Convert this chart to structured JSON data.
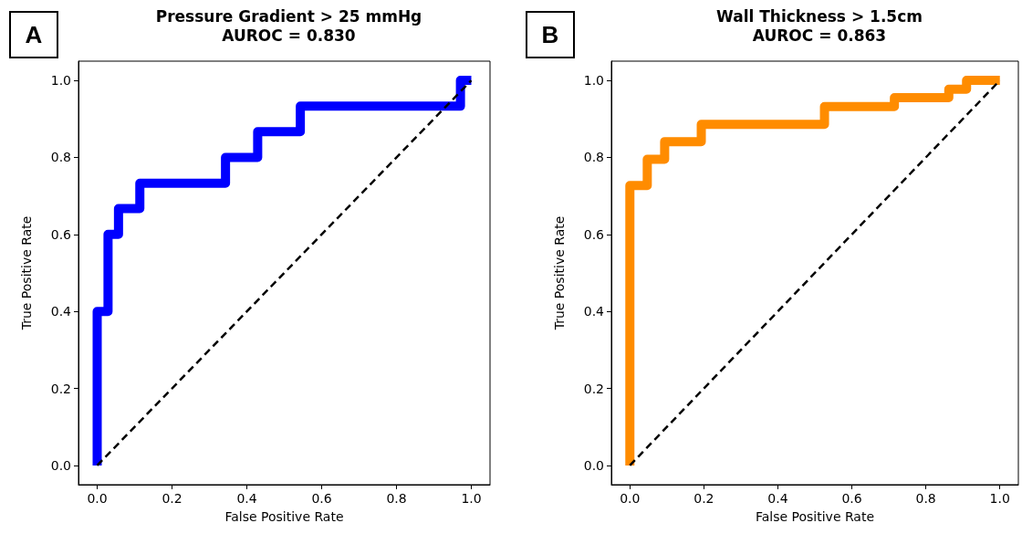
{
  "chart_data": [
    {
      "type": "line",
      "title": "Pressure Gradient > 25 mmHg",
      "subtitle": "AUROC = 0.830",
      "xlabel": "False Positive Rate",
      "ylabel": "True Positive Rate",
      "annotations": [
        "A"
      ],
      "xlim": [
        -0.05,
        1.05
      ],
      "ylim": [
        -0.05,
        1.05
      ],
      "xticks": [
        {
          "value": 0,
          "label": "0.0"
        },
        {
          "value": 0.2,
          "label": "0.2"
        },
        {
          "value": 0.4,
          "label": "0.4"
        },
        {
          "value": 0.6,
          "label": "0.6"
        },
        {
          "value": 0.8,
          "label": "0.8"
        },
        {
          "value": 1,
          "label": "1.0"
        }
      ],
      "yticks": [
        {
          "value": 0,
          "label": "0.0"
        },
        {
          "value": 0.2,
          "label": "0.2"
        },
        {
          "value": 0.4,
          "label": "0.4"
        },
        {
          "value": 0.6,
          "label": "0.6"
        },
        {
          "value": 0.8,
          "label": "0.8"
        },
        {
          "value": 1,
          "label": "1.0"
        }
      ],
      "grid": false,
      "marker": "none",
      "series": [
        {
          "color": "#0000ff",
          "line_style": "solid",
          "x": [
            0,
            0,
            0.029,
            0.029,
            0.057,
            0.057,
            0.114,
            0.114,
            0.343,
            0.343,
            0.429,
            0.429,
            0.543,
            0.543,
            0.971,
            0.971,
            1
          ],
          "values": [
            0,
            0.4,
            0.4,
            0.6,
            0.6,
            0.667,
            0.667,
            0.733,
            0.733,
            0.8,
            0.8,
            0.867,
            0.867,
            0.933,
            0.933,
            1,
            1
          ]
        },
        {
          "color": "#000000",
          "line_style": "dashed",
          "x": [
            0,
            1
          ],
          "values": [
            0,
            1
          ]
        }
      ]
    },
    {
      "type": "line",
      "title": "Wall Thickness > 1.5cm",
      "subtitle": "AUROC = 0.863",
      "xlabel": "False Positive Rate",
      "ylabel": "True Positive Rate",
      "annotations": [
        "B"
      ],
      "xlim": [
        -0.05,
        1.05
      ],
      "ylim": [
        -0.05,
        1.05
      ],
      "xticks": [
        {
          "value": 0,
          "label": "0.0"
        },
        {
          "value": 0.2,
          "label": "0.2"
        },
        {
          "value": 0.4,
          "label": "0.4"
        },
        {
          "value": 0.6,
          "label": "0.6"
        },
        {
          "value": 0.8,
          "label": "0.8"
        },
        {
          "value": 1,
          "label": "1.0"
        }
      ],
      "yticks": [
        {
          "value": 0,
          "label": "0.0"
        },
        {
          "value": 0.2,
          "label": "0.2"
        },
        {
          "value": 0.4,
          "label": "0.4"
        },
        {
          "value": 0.6,
          "label": "0.6"
        },
        {
          "value": 0.8,
          "label": "0.8"
        },
        {
          "value": 1,
          "label": "1.0"
        }
      ],
      "grid": false,
      "marker": "none",
      "series": [
        {
          "color": "#ff8c00",
          "line_style": "solid",
          "x": [
            0,
            0,
            0.047,
            0.047,
            0.094,
            0.094,
            0.193,
            0.193,
            0.526,
            0.526,
            0.715,
            0.715,
            0.862,
            0.862,
            0.91,
            0.91,
            1
          ],
          "values": [
            0,
            0.727,
            0.727,
            0.795,
            0.795,
            0.841,
            0.841,
            0.886,
            0.886,
            0.932,
            0.932,
            0.955,
            0.955,
            0.977,
            0.977,
            1,
            1
          ]
        },
        {
          "color": "#000000",
          "line_style": "dashed",
          "x": [
            0,
            1
          ],
          "values": [
            0,
            1
          ]
        }
      ]
    }
  ]
}
